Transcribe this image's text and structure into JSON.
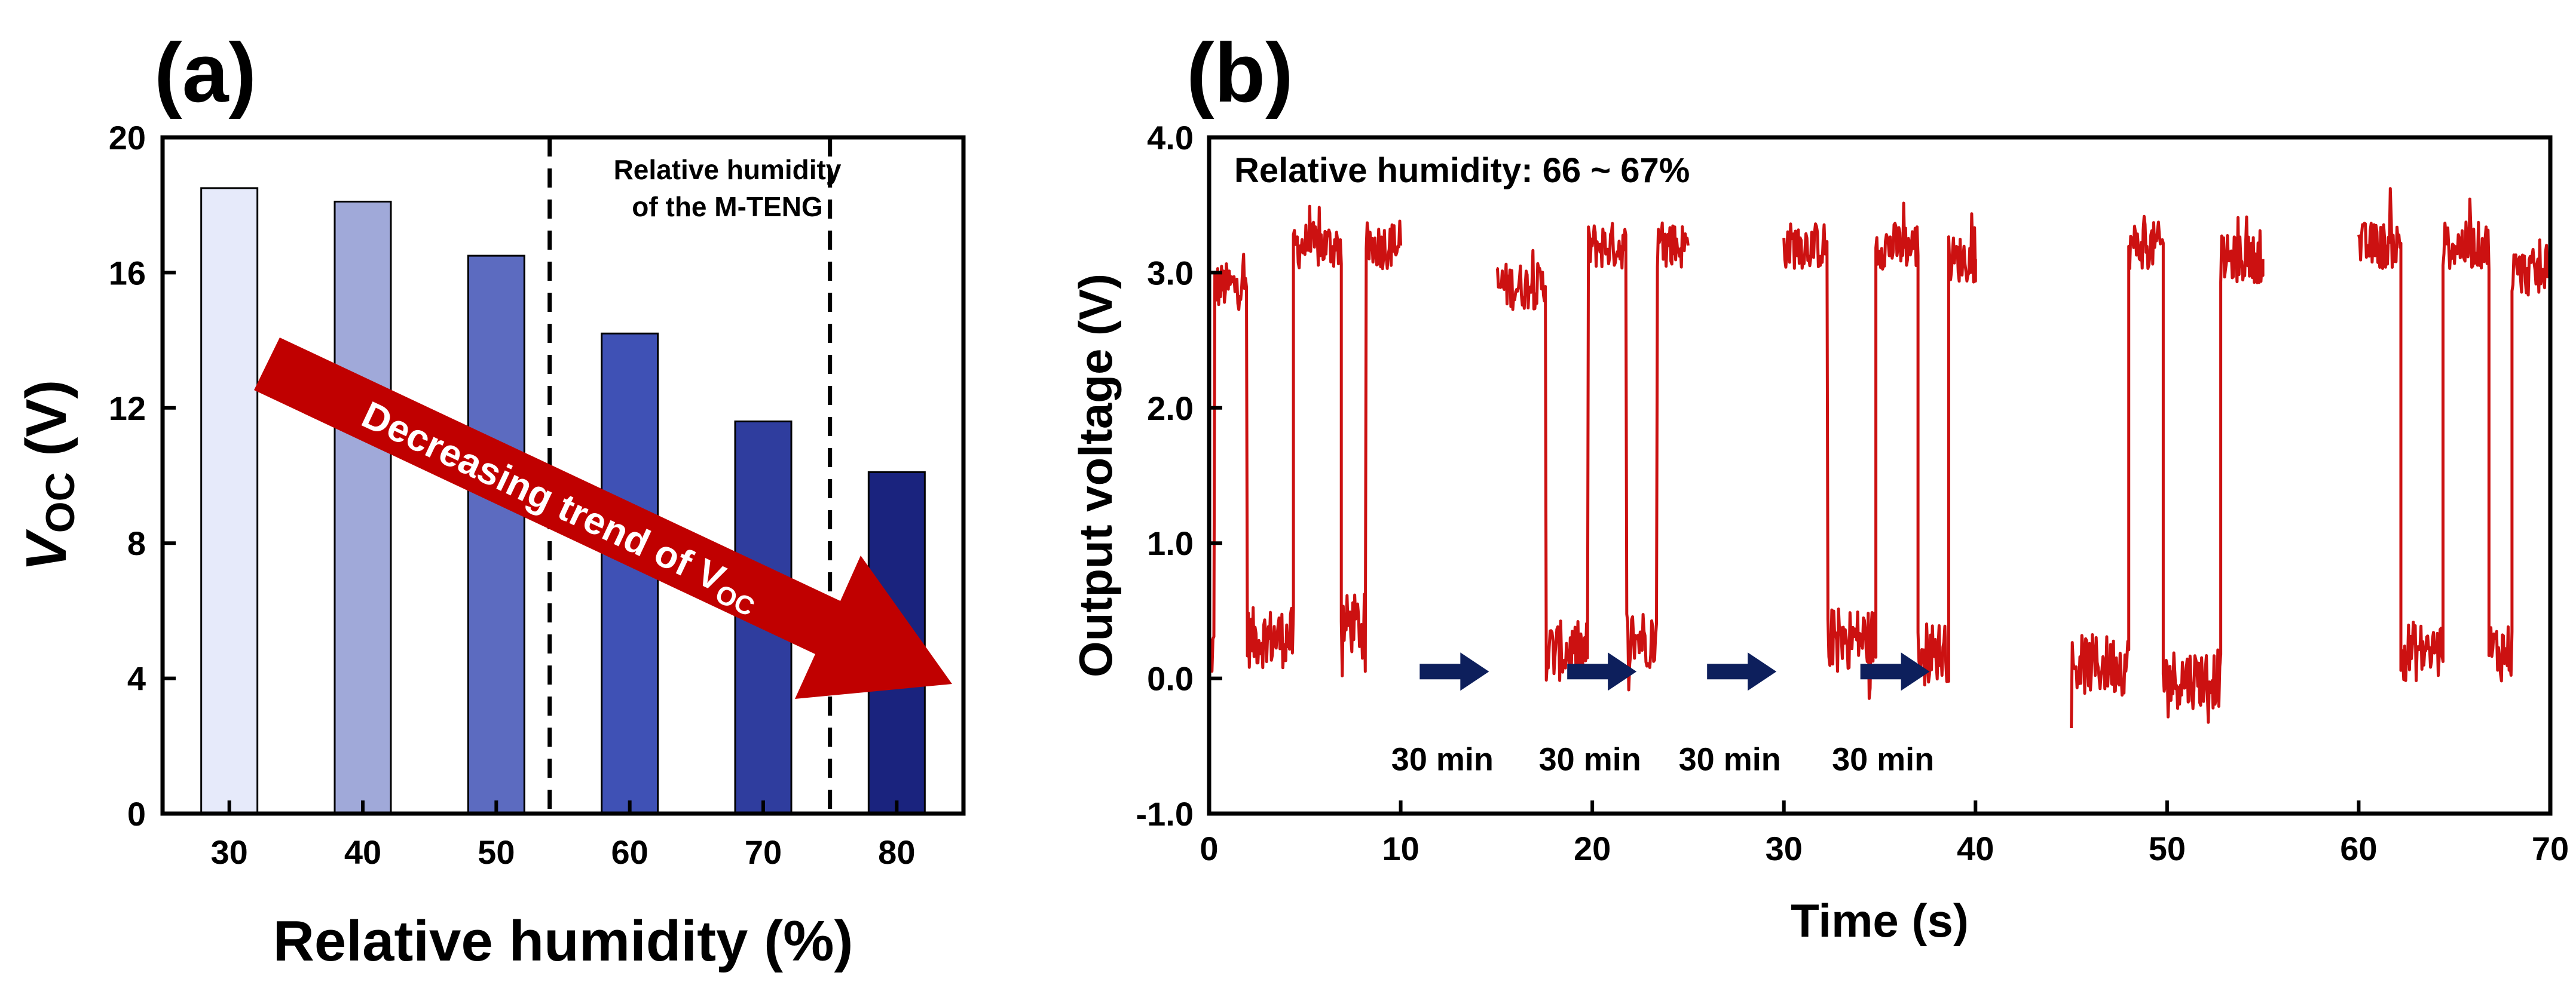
{
  "chart_data": [
    {
      "type": "bar",
      "panel_label": "(a)",
      "categories": [
        "30",
        "40",
        "50",
        "60",
        "70",
        "80"
      ],
      "values": [
        18.5,
        18.1,
        16.5,
        14.2,
        11.6,
        10.1
      ],
      "colors": [
        "#e6eafa",
        "#a0a9d9",
        "#5c6bc0",
        "#3f51b5",
        "#2f3d9e",
        "#1a237e"
      ],
      "ylabel_main": "V",
      "ylabel_sub": "OC",
      "ylabel_unit": " (V)",
      "xlabel": "Relative humidity (%)",
      "ylim": [
        0,
        20
      ],
      "yticks": [
        "0",
        "4",
        "8",
        "12",
        "16",
        "20"
      ],
      "region_annotation": [
        "Relative humidity",
        "of the M-TENG"
      ],
      "region_bounds": [
        54,
        75
      ],
      "trend_arrow_text_main": "Decreasing trend of V",
      "trend_arrow_text_sub": "OC",
      "trend_arrow_color": "#c00000"
    },
    {
      "type": "line",
      "panel_label": "(b)",
      "xlabel": "Time (s)",
      "ylabel": "Output voltage (V)",
      "xlim": [
        0,
        70
      ],
      "ylim": [
        -1.0,
        4.0
      ],
      "xticks": [
        "0",
        "10",
        "20",
        "30",
        "40",
        "50",
        "60",
        "70"
      ],
      "yticks": [
        "-1.0",
        "0.0",
        "1.0",
        "2.0",
        "3.0",
        "4.0"
      ],
      "annotation": "Relative humidity: 66 ~ 67%",
      "line_color": "#cc1111",
      "gap_arrow_color": "#0d1f5c",
      "gap_labels": [
        "30 min",
        "30 min",
        "30 min",
        "30 min"
      ],
      "gap_arrow_centers_s": [
        12.8,
        20.5,
        27.8,
        35.8
      ],
      "series": [
        {
          "name": "segment-1",
          "x_range": [
            0,
            10
          ],
          "levels": [
            {
              "t0": 0.0,
              "t1": 0.3,
              "v": 0.2
            },
            {
              "t0": 0.3,
              "t1": 2.0,
              "v": 2.9
            },
            {
              "t0": 2.0,
              "t1": 4.4,
              "v": 0.3
            },
            {
              "t0": 4.4,
              "t1": 6.9,
              "v": 3.2
            },
            {
              "t0": 6.9,
              "t1": 8.2,
              "v": 0.4
            },
            {
              "t0": 8.2,
              "t1": 10.0,
              "v": 3.2
            }
          ]
        },
        {
          "name": "segment-2",
          "x_range": [
            15,
            25
          ],
          "levels": [
            {
              "t0": 15.0,
              "t1": 17.6,
              "v": 2.9
            },
            {
              "t0": 17.6,
              "t1": 19.8,
              "v": 0.2
            },
            {
              "t0": 19.8,
              "t1": 21.8,
              "v": 3.2
            },
            {
              "t0": 21.8,
              "t1": 23.4,
              "v": 0.3
            },
            {
              "t0": 23.4,
              "t1": 25.0,
              "v": 3.2
            }
          ]
        },
        {
          "name": "segment-3",
          "x_range": [
            30,
            40
          ],
          "levels": [
            {
              "t0": 30.0,
              "t1": 32.3,
              "v": 3.2
            },
            {
              "t0": 32.3,
              "t1": 34.8,
              "v": 0.3
            },
            {
              "t0": 34.8,
              "t1": 37.0,
              "v": 3.2
            },
            {
              "t0": 37.0,
              "t1": 38.6,
              "v": 0.2
            },
            {
              "t0": 38.6,
              "t1": 40.0,
              "v": 3.1
            }
          ]
        },
        {
          "name": "segment-4",
          "x_range": [
            45,
            55
          ],
          "levels": [
            {
              "t0": 45.0,
              "t1": 48.0,
              "v": 0.1
            },
            {
              "t0": 48.0,
              "t1": 49.8,
              "v": 3.2
            },
            {
              "t0": 49.8,
              "t1": 52.8,
              "v": 0.0
            },
            {
              "t0": 52.8,
              "t1": 55.0,
              "v": 3.1
            }
          ]
        },
        {
          "name": "segment-5",
          "x_range": [
            60,
            70
          ],
          "levels": [
            {
              "t0": 60.0,
              "t1": 62.2,
              "v": 3.2
            },
            {
              "t0": 62.2,
              "t1": 64.4,
              "v": 0.2
            },
            {
              "t0": 64.4,
              "t1": 66.8,
              "v": 3.2
            },
            {
              "t0": 66.8,
              "t1": 68.0,
              "v": 0.2
            },
            {
              "t0": 68.0,
              "t1": 70.0,
              "v": 3.0
            }
          ]
        }
      ]
    }
  ]
}
